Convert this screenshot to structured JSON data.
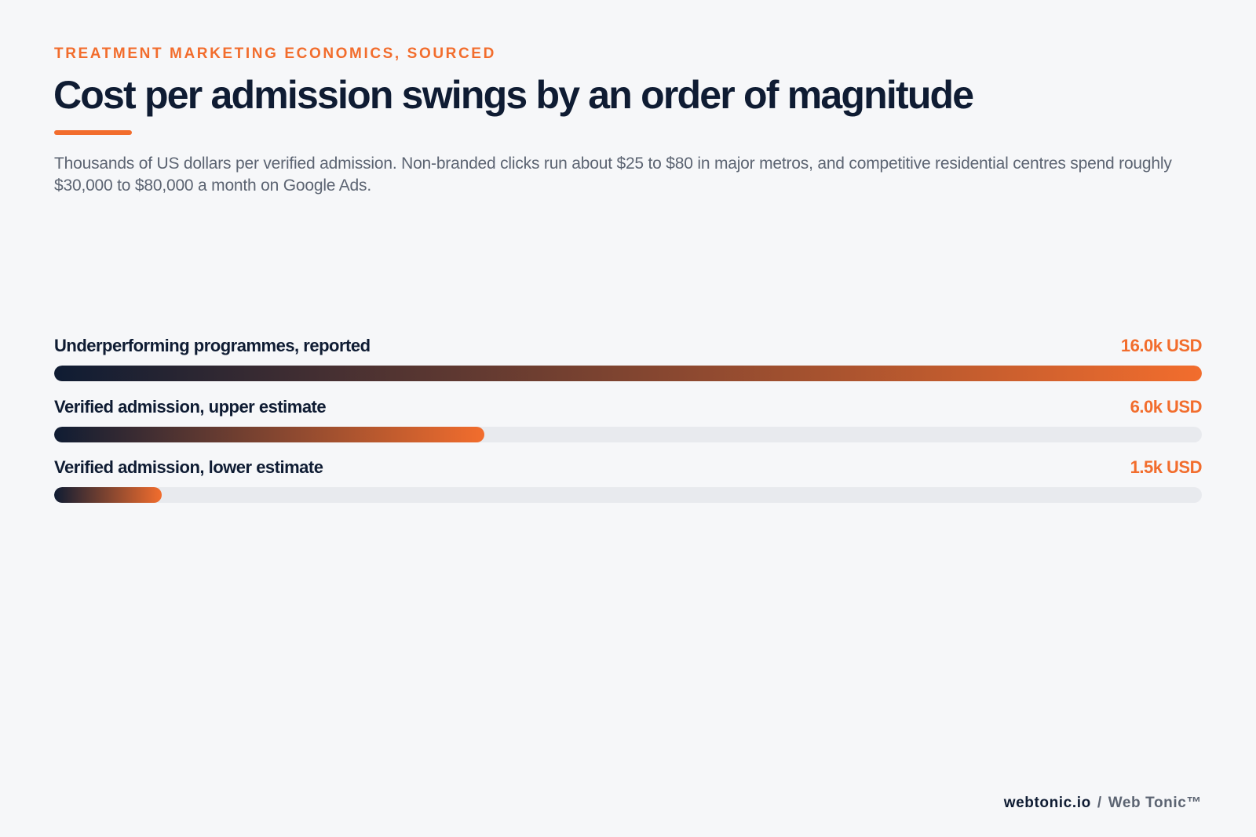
{
  "eyebrow": "TREATMENT MARKETING ECONOMICS, SOURCED",
  "title": "Cost per admission swings by an order of magnitude",
  "subtitle": "Thousands of US dollars per verified admission. Non-branded clicks run about $25 to $80 in major metros, and competitive residential centres spend roughly $30,000 to $80,000 a month on Google Ads.",
  "colors": {
    "accent": "#f26d2d",
    "ink": "#0f1c33",
    "muted": "#5c6472",
    "track": "#e8eaee",
    "background": "#f6f7f9"
  },
  "chart_data": {
    "type": "bar",
    "orientation": "horizontal",
    "categories": [
      "Underperforming programmes, reported",
      "Verified admission, upper estimate",
      "Verified admission, lower estimate"
    ],
    "values": [
      16.0,
      6.0,
      1.5
    ],
    "value_labels": [
      "16.0k USD",
      "6.0k USD",
      "1.5k USD"
    ],
    "unit": "thousand USD",
    "xlim": [
      0,
      16.0
    ],
    "grid": false
  },
  "footer": {
    "site": "webtonic.io",
    "separator": "/",
    "brand": "Web Tonic™"
  }
}
